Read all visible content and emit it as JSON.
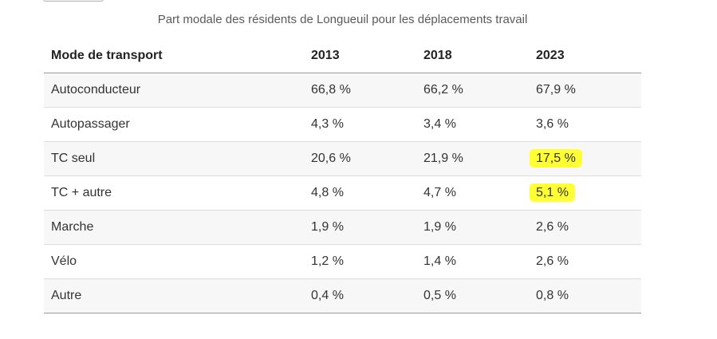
{
  "caption": "Part modale des résidents de Longueuil pour les déplacements travail",
  "table": {
    "headers": [
      "Mode de transport",
      "2013",
      "2018",
      "2023"
    ],
    "rows": [
      [
        "Autoconducteur",
        "66,8 %",
        "66,2 %",
        "67,9 %"
      ],
      [
        "Autopassager",
        "4,3 %",
        "3,4 %",
        "3,6 %"
      ],
      [
        "TC seul",
        "20,6 %",
        "21,9 %",
        "17,5 %"
      ],
      [
        "TC + autre",
        "4,8 %",
        "4,7 %",
        "5,1 %"
      ],
      [
        "Marche",
        "1,9 %",
        "1,9 %",
        "2,6 %"
      ],
      [
        "Vélo",
        "1,2 %",
        "1,4 %",
        "2,6 %"
      ],
      [
        "Autre",
        "0,4 %",
        "0,5 %",
        "0,8 %"
      ]
    ]
  },
  "highlight_color": "#ffff33"
}
